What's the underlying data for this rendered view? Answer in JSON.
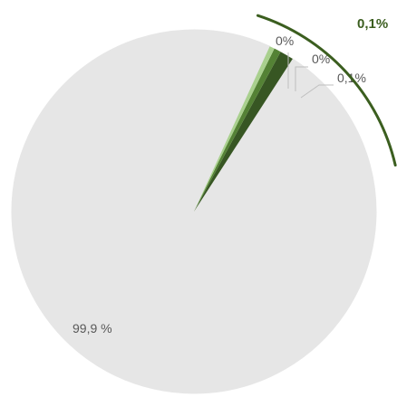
{
  "chart_data": {
    "type": "pie",
    "categories": [
      "",
      "",
      "",
      ""
    ],
    "values": [
      99.9,
      0.02,
      0.03,
      0.05
    ],
    "labels": [
      "99,9 %",
      "0%",
      "0%",
      "0,1%"
    ],
    "colors": [
      "#e6e6e6",
      "#a9d08e",
      "#548235",
      "#375623"
    ],
    "start_angle_deg": 24.6,
    "callout": {
      "text": "0,1%",
      "color": "#3b5e1f"
    },
    "legend": "none"
  }
}
